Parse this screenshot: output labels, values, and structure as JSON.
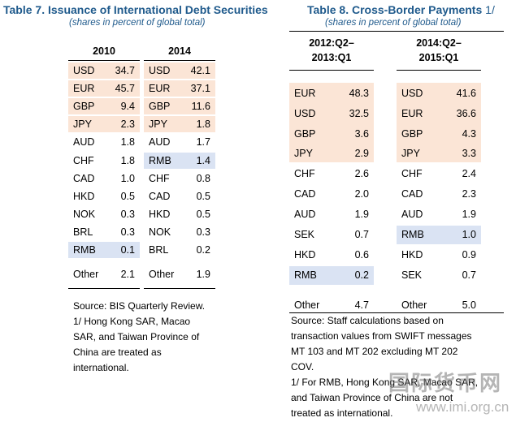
{
  "table7": {
    "title": "Table 7. Issuance of International Debt Securities",
    "subtitle": "(shares in percent of global total)",
    "col2010": {
      "header": "2010",
      "rows": [
        {
          "code": "USD",
          "value": "34.7"
        },
        {
          "code": "EUR",
          "value": "45.7"
        },
        {
          "code": "GBP",
          "value": "9.4"
        },
        {
          "code": "JPY",
          "value": "2.3"
        },
        {
          "code": "AUD",
          "value": "1.8"
        },
        {
          "code": "CHF",
          "value": "1.8"
        },
        {
          "code": "CAD",
          "value": "1.0"
        },
        {
          "code": "HKD",
          "value": "0.5"
        },
        {
          "code": "NOK",
          "value": "0.3"
        },
        {
          "code": "BRL",
          "value": "0.3"
        },
        {
          "code": "RMB",
          "value": "0.1"
        },
        {
          "code": "Other",
          "value": "2.1"
        }
      ]
    },
    "col2014": {
      "header": "2014",
      "rows": [
        {
          "code": "USD",
          "value": "42.1"
        },
        {
          "code": "EUR",
          "value": "37.1"
        },
        {
          "code": "GBP",
          "value": "11.6"
        },
        {
          "code": "JPY",
          "value": "1.8"
        },
        {
          "code": "AUD",
          "value": "1.7"
        },
        {
          "code": "RMB",
          "value": "1.4"
        },
        {
          "code": "CHF",
          "value": "0.8"
        },
        {
          "code": "CAD",
          "value": "0.5"
        },
        {
          "code": "HKD",
          "value": "0.5"
        },
        {
          "code": "NOK",
          "value": "0.3"
        },
        {
          "code": "BRL",
          "value": "0.2"
        },
        {
          "code": "Other",
          "value": "1.9"
        }
      ]
    },
    "notes": [
      "Source: BIS Quarterly Review.",
      "1/ Hong Kong SAR, Macao",
      "SAR, and Taiwan Province of",
      "China are treated as",
      "international."
    ]
  },
  "table8": {
    "title": "Table 8. Cross-Border Payments",
    "title_sup": "1/",
    "subtitle": "(shares in percent of global total)",
    "colA": {
      "header_line1": "2012:Q2–",
      "header_line2": "2013:Q1",
      "rows": [
        {
          "code": "EUR",
          "value": "48.3"
        },
        {
          "code": "USD",
          "value": "32.5"
        },
        {
          "code": "GBP",
          "value": "3.6"
        },
        {
          "code": "JPY",
          "value": "2.9"
        },
        {
          "code": "CHF",
          "value": "2.6"
        },
        {
          "code": "CAD",
          "value": "2.0"
        },
        {
          "code": "AUD",
          "value": "1.9"
        },
        {
          "code": "SEK",
          "value": "0.7"
        },
        {
          "code": "HKD",
          "value": "0.6"
        },
        {
          "code": "RMB",
          "value": "0.2"
        },
        {
          "code": "Other",
          "value": "4.7"
        }
      ]
    },
    "colB": {
      "header_line1": "2014:Q2–",
      "header_line2": "2015:Q1",
      "rows": [
        {
          "code": "USD",
          "value": "41.6"
        },
        {
          "code": "EUR",
          "value": "36.6"
        },
        {
          "code": "GBP",
          "value": "4.3"
        },
        {
          "code": "JPY",
          "value": "3.3"
        },
        {
          "code": "CHF",
          "value": "2.4"
        },
        {
          "code": "CAD",
          "value": "2.3"
        },
        {
          "code": "AUD",
          "value": "1.9"
        },
        {
          "code": "RMB",
          "value": "1.0"
        },
        {
          "code": "HKD",
          "value": "0.9"
        },
        {
          "code": "SEK",
          "value": "0.7"
        },
        {
          "code": "Other",
          "value": "5.0"
        }
      ]
    },
    "notes": [
      "Source: Staff calculations based on",
      "transaction values from SWIFT messages",
      "MT 103 and MT 202 excluding MT 202",
      "COV.",
      "1/ For RMB, Hong Kong SAR, Macao SAR,",
      "and Taiwan Province of China are not",
      "treated as international."
    ]
  },
  "watermark": {
    "line1": "国际货币网",
    "line2": "www.imi.org.cn"
  },
  "colors": {
    "peach": "#fbe5d6",
    "blue": "#dae3f3",
    "title": "#1f5a8c"
  }
}
